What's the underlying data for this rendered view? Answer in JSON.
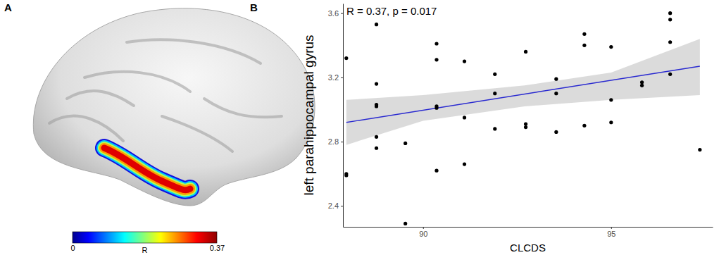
{
  "chart_data": [
    {
      "type": "brain_map",
      "panel": "A",
      "colorbar": {
        "range": [
          0,
          0.37
        ],
        "ticks": [
          0,
          0.37
        ],
        "label": "R"
      }
    },
    {
      "type": "scatter",
      "panel": "B",
      "annotation": "R = 0.37, p = 0.017",
      "xlabel": "CLCDS",
      "ylabel": "left parahippocampal gyrus",
      "xlim": [
        87.87,
        97.7
      ],
      "xticks": [
        90,
        95
      ],
      "ylim": [
        2.27,
        3.66
      ],
      "yticks": [
        2.4,
        2.8,
        3.2,
        3.6
      ],
      "grid": false,
      "color": "#000000",
      "x": [
        87.96,
        87.96,
        87.96,
        88.76,
        88.76,
        88.76,
        88.76,
        88.76,
        88.76,
        89.53,
        89.53,
        90.36,
        90.36,
        90.36,
        90.36,
        90.36,
        91.1,
        91.1,
        91.1,
        91.91,
        91.91,
        91.91,
        92.73,
        92.73,
        92.73,
        93.54,
        93.54,
        93.54,
        94.29,
        94.29,
        94.29,
        95.0,
        95.0,
        95.0,
        95.82,
        95.82,
        96.57,
        96.57,
        96.57,
        96.57,
        97.36
      ],
      "values": [
        3.32,
        2.6,
        2.59,
        3.53,
        3.16,
        3.03,
        3.02,
        2.83,
        2.76,
        2.79,
        2.29,
        3.41,
        3.31,
        3.02,
        3.01,
        2.62,
        3.3,
        2.95,
        2.66,
        3.22,
        3.1,
        2.88,
        3.36,
        2.91,
        2.89,
        3.19,
        3.1,
        2.86,
        3.47,
        3.4,
        2.9,
        3.39,
        3.06,
        2.92,
        3.17,
        3.15,
        3.6,
        3.56,
        3.42,
        3.22,
        2.75
      ],
      "fit": {
        "x": [
          87.96,
          97.36
        ],
        "values": [
          2.92,
          3.27
        ],
        "color": "#2a2ad0"
      },
      "band": {
        "x": [
          87.96,
          90,
          92.7,
          95,
          97.36
        ],
        "lower": [
          2.78,
          2.93,
          3.02,
          3.06,
          3.09
        ],
        "upper": [
          3.06,
          3.09,
          3.15,
          3.23,
          3.44
        ]
      }
    }
  ]
}
